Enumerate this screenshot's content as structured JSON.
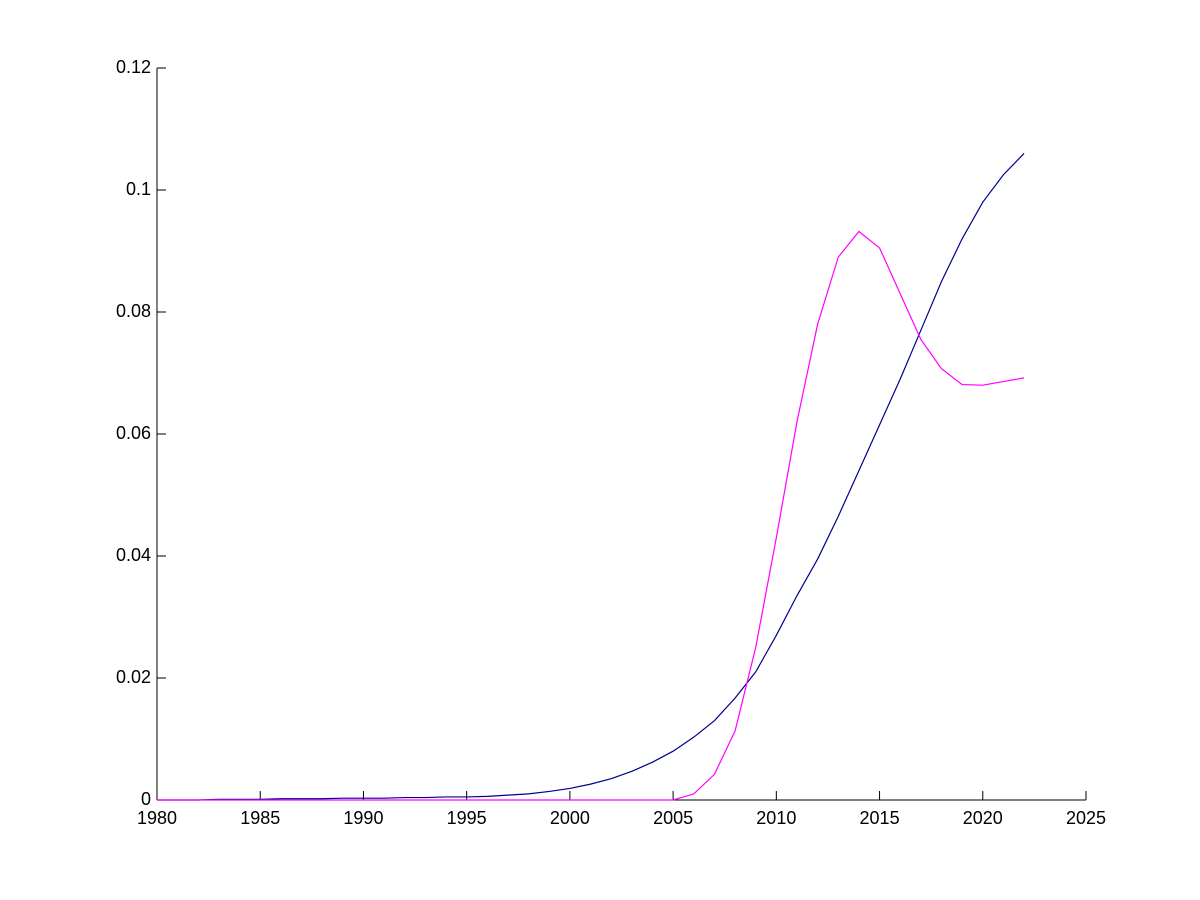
{
  "chart_data": {
    "type": "line",
    "x": [
      1980,
      1981,
      1982,
      1983,
      1984,
      1985,
      1986,
      1987,
      1988,
      1989,
      1990,
      1991,
      1992,
      1993,
      1994,
      1995,
      1996,
      1997,
      1998,
      1999,
      2000,
      2001,
      2002,
      2003,
      2004,
      2005,
      2006,
      2007,
      2008,
      2009,
      2010,
      2011,
      2012,
      2013,
      2014,
      2015,
      2016,
      2017,
      2018,
      2019,
      2020,
      2021,
      2022
    ],
    "series": [
      {
        "color": "#00008b",
        "values": [
          0,
          0,
          0,
          0.0001,
          0.0001,
          0.0001,
          0.0002,
          0.0002,
          0.0002,
          0.0003,
          0.0003,
          0.0003,
          0.0004,
          0.0004,
          0.0005,
          0.0005,
          0.0006,
          0.0008,
          0.001,
          0.0014,
          0.0019,
          0.0026,
          0.0035,
          0.0047,
          0.0062,
          0.008,
          0.0103,
          0.013,
          0.0167,
          0.021,
          0.027,
          0.0335,
          0.0395,
          0.0465,
          0.054,
          0.0615,
          0.069,
          0.077,
          0.085,
          0.092,
          0.098,
          0.1025,
          0.106
        ]
      },
      {
        "color": "#ff00ff",
        "values": [
          0,
          0,
          0,
          0,
          0,
          0,
          0,
          0,
          0,
          0,
          0,
          0,
          0,
          0,
          0,
          0,
          0,
          0,
          0,
          0,
          0,
          0,
          0,
          0,
          0,
          0,
          0.001,
          0.0042,
          0.0113,
          0.025,
          0.043,
          0.062,
          0.078,
          0.089,
          0.0932,
          0.0905,
          0.083,
          0.0755,
          0.0707,
          0.0681,
          0.068,
          0.0686,
          0.0692
        ]
      }
    ],
    "xlim": [
      1980,
      2025
    ],
    "xticks": [
      1980,
      1985,
      1990,
      1995,
      2000,
      2005,
      2010,
      2015,
      2020,
      2025
    ],
    "ylim": [
      0,
      0.12
    ],
    "yticks": [
      0,
      0.02,
      0.04,
      0.06,
      0.08,
      0.1,
      0.12
    ]
  }
}
